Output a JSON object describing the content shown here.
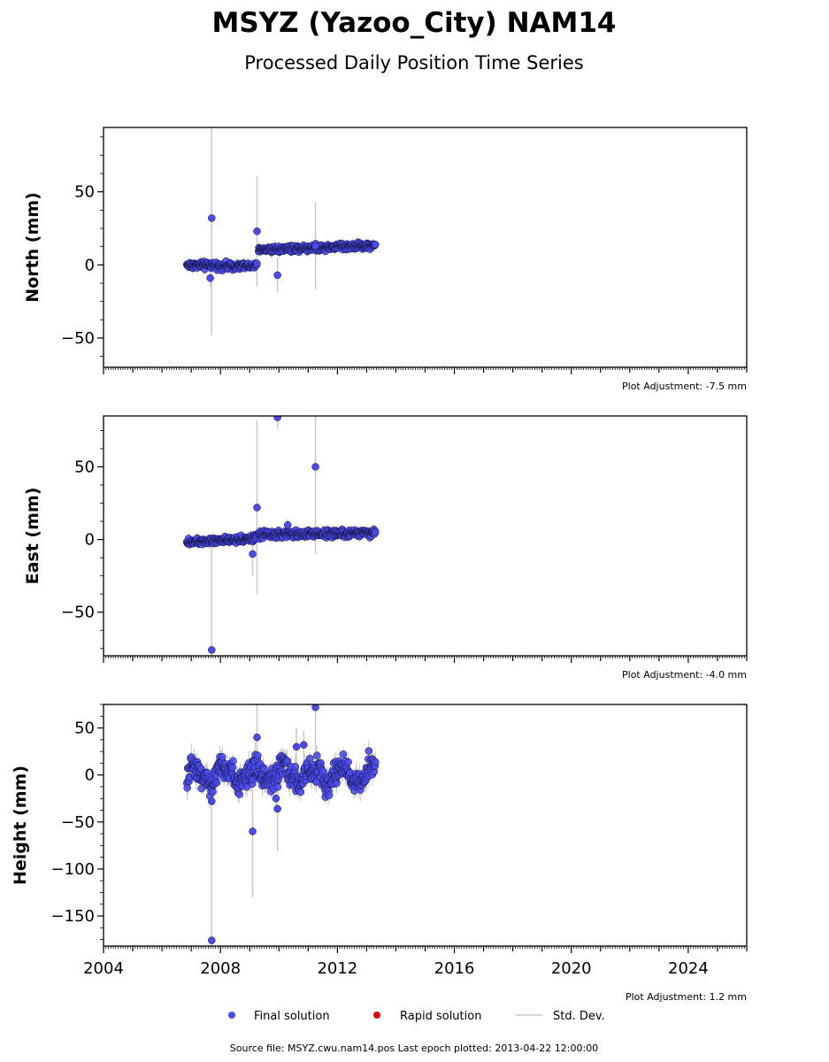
{
  "title": "MSYZ (Yazoo_City) NAM14",
  "subtitle": "Processed Daily Position Time Series",
  "footer": "Source file: MSYZ.cwu.nam14.pos  Last epoch plotted: 2013-04-22 12:00:00",
  "colors": {
    "final": "#4a4af0",
    "rapid": "#e00000",
    "stddev": "#c8c8c8",
    "edge": "#111133"
  },
  "legend": [
    {
      "label": "Final solution",
      "marker": "dot-blue"
    },
    {
      "label": "Rapid solution",
      "marker": "dot-red"
    },
    {
      "label": "Std. Dev.",
      "marker": "line-gray"
    }
  ],
  "chart_data": [
    {
      "type": "scatter",
      "ylabel": "North (mm)",
      "adjustment": "Plot Adjustment: -7.5 mm",
      "xlim": [
        2004,
        2026
      ],
      "ylim": [
        -70,
        94
      ],
      "yticks": [
        50,
        0,
        -50
      ],
      "ytick_labels": [
        "50",
        "0",
        "−50"
      ],
      "show_xtick_labels": false,
      "segments": [
        {
          "x": [
            2006.85,
            2009.25
          ],
          "base": [
            0.0,
            -1.0
          ],
          "amp": 1.8
        },
        {
          "x": [
            2009.3,
            2013.3
          ],
          "base": [
            10.5,
            13.5
          ],
          "amp": 1.8
        }
      ],
      "outliers": [
        {
          "x": 2007.7,
          "y": 32,
          "err": 80
        },
        {
          "x": 2009.25,
          "y": 23,
          "err": 38
        },
        {
          "x": 2009.95,
          "y": -7,
          "err": 12
        },
        {
          "x": 2007.65,
          "y": -9,
          "err": 6
        },
        {
          "x": 2011.25,
          "y": 13,
          "err": 30
        }
      ]
    },
    {
      "type": "scatter",
      "ylabel": "East (mm)",
      "adjustment": "Plot Adjustment: -4.0 mm",
      "xlim": [
        2004,
        2026
      ],
      "ylim": [
        -80,
        85
      ],
      "yticks": [
        50,
        0,
        -50
      ],
      "ytick_labels": [
        "50",
        "0",
        "−50"
      ],
      "show_xtick_labels": false,
      "segments": [
        {
          "x": [
            2006.85,
            2009.25
          ],
          "base": [
            -1.5,
            1.0
          ],
          "amp": 1.8
        },
        {
          "x": [
            2009.3,
            2013.3
          ],
          "base": [
            3.0,
            5.0
          ],
          "amp": 2.0
        }
      ],
      "outliers": [
        {
          "x": 2007.7,
          "y": -76,
          "err": 80
        },
        {
          "x": 2009.25,
          "y": 22,
          "err": 60
        },
        {
          "x": 2009.95,
          "y": 84,
          "err": 8
        },
        {
          "x": 2011.25,
          "y": 50,
          "err": 60
        },
        {
          "x": 2009.1,
          "y": -10,
          "err": 15
        },
        {
          "x": 2010.3,
          "y": 10,
          "err": 4
        }
      ]
    },
    {
      "type": "scatter",
      "ylabel": "Height (mm)",
      "adjustment": "Plot Adjustment: 1.2 mm",
      "xlim": [
        2004,
        2026
      ],
      "ylim": [
        -182,
        75
      ],
      "yticks": [
        50,
        0,
        -50,
        -100,
        -150
      ],
      "ytick_labels": [
        "50",
        "0",
        "−50",
        "−100",
        "−150"
      ],
      "show_xtick_labels": true,
      "xticks": [
        2004,
        2008,
        2012,
        2016,
        2020,
        2024
      ],
      "xtick_labels": [
        "2004",
        "2008",
        "2012",
        "2016",
        "2020",
        "2024"
      ],
      "segments": [
        {
          "x": [
            2006.85,
            2013.3
          ],
          "base": [
            0.0,
            0.0
          ],
          "amp": 10,
          "seasonal": 8
        }
      ],
      "outliers": [
        {
          "x": 2007.7,
          "y": -176,
          "err": 150
        },
        {
          "x": 2011.25,
          "y": 72,
          "err": 60
        },
        {
          "x": 2009.25,
          "y": 40,
          "err": 35
        },
        {
          "x": 2009.95,
          "y": -36,
          "err": 45
        },
        {
          "x": 2007.7,
          "y": -28,
          "err": 20
        },
        {
          "x": 2009.1,
          "y": -60,
          "err": 70
        },
        {
          "x": 2010.6,
          "y": 30,
          "err": 20
        },
        {
          "x": 2010.85,
          "y": 32,
          "err": 15
        },
        {
          "x": 2009.9,
          "y": -25,
          "err": 10
        }
      ]
    }
  ]
}
